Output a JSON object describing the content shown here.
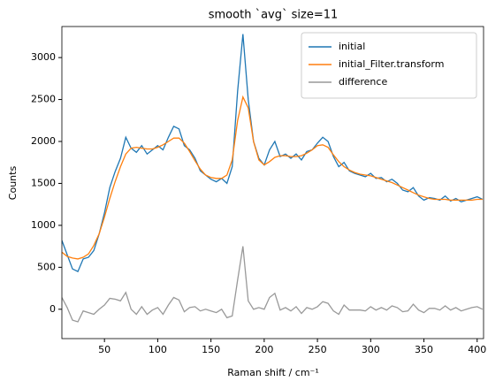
{
  "chart_data": {
    "type": "line",
    "title": "smooth `avg` size=11",
    "xlabel": "Raman shift / cm⁻¹",
    "ylabel": "Counts",
    "x": [
      10,
      15,
      20,
      25,
      30,
      35,
      40,
      45,
      50,
      55,
      60,
      65,
      70,
      75,
      80,
      85,
      90,
      95,
      100,
      105,
      110,
      115,
      120,
      125,
      130,
      135,
      140,
      145,
      150,
      155,
      160,
      165,
      170,
      175,
      180,
      185,
      190,
      195,
      200,
      205,
      210,
      215,
      220,
      225,
      230,
      235,
      240,
      245,
      250,
      255,
      260,
      265,
      270,
      275,
      280,
      285,
      290,
      295,
      300,
      305,
      310,
      315,
      320,
      325,
      330,
      335,
      340,
      345,
      350,
      355,
      360,
      365,
      370,
      375,
      380,
      385,
      390,
      395,
      400,
      405
    ],
    "series": [
      {
        "name": "initial",
        "color": "#1f77b4",
        "values": [
          820,
          650,
          480,
          450,
          600,
          620,
          700,
          900,
          1150,
          1450,
          1640,
          1800,
          2050,
          1920,
          1870,
          1950,
          1850,
          1900,
          1950,
          1900,
          2050,
          2180,
          2150,
          1950,
          1900,
          1800,
          1650,
          1600,
          1550,
          1520,
          1560,
          1500,
          1700,
          2600,
          3280,
          2500,
          2000,
          1800,
          1720,
          1900,
          2000,
          1820,
          1850,
          1800,
          1850,
          1780,
          1880,
          1900,
          1980,
          2050,
          2000,
          1820,
          1700,
          1750,
          1650,
          1620,
          1600,
          1580,
          1620,
          1560,
          1570,
          1520,
          1550,
          1500,
          1420,
          1400,
          1450,
          1350,
          1300,
          1330,
          1320,
          1300,
          1350,
          1290,
          1320,
          1280,
          1300,
          1320,
          1340,
          1310
        ]
      },
      {
        "name": "initial_Filter.transform",
        "color": "#ff7f0e",
        "values": [
          680,
          630,
          610,
          600,
          620,
          660,
          760,
          900,
          1100,
          1320,
          1520,
          1700,
          1850,
          1920,
          1930,
          1920,
          1910,
          1910,
          1930,
          1960,
          2000,
          2040,
          2040,
          1980,
          1880,
          1770,
          1670,
          1600,
          1570,
          1560,
          1560,
          1600,
          1780,
          2250,
          2530,
          2400,
          2000,
          1780,
          1720,
          1760,
          1810,
          1830,
          1830,
          1820,
          1820,
          1830,
          1860,
          1900,
          1950,
          1960,
          1930,
          1840,
          1760,
          1700,
          1660,
          1630,
          1610,
          1600,
          1590,
          1570,
          1550,
          1530,
          1510,
          1480,
          1450,
          1420,
          1390,
          1360,
          1340,
          1320,
          1310,
          1310,
          1310,
          1300,
          1300,
          1300,
          1300,
          1300,
          1310,
          1310
        ]
      },
      {
        "name": "difference",
        "color": "#999999",
        "values": [
          140,
          20,
          -130,
          -150,
          -20,
          -40,
          -60,
          0,
          50,
          130,
          120,
          100,
          200,
          0,
          -60,
          30,
          -60,
          -10,
          20,
          -60,
          50,
          140,
          110,
          -30,
          20,
          30,
          -20,
          0,
          -20,
          -40,
          0,
          -100,
          -80,
          350,
          750,
          100,
          0,
          20,
          0,
          140,
          190,
          -10,
          20,
          -20,
          30,
          -50,
          20,
          0,
          30,
          90,
          70,
          -20,
          -60,
          50,
          -10,
          -10,
          -10,
          -20,
          30,
          -10,
          20,
          -10,
          40,
          20,
          -30,
          -20,
          60,
          -10,
          -40,
          10,
          10,
          -10,
          40,
          -10,
          20,
          -20,
          0,
          20,
          30,
          0
        ]
      }
    ],
    "xlim": [
      10,
      406
    ],
    "ylim": [
      -350,
      3370
    ],
    "xticks": [
      50,
      100,
      150,
      200,
      250,
      300,
      350,
      400
    ],
    "yticks": [
      0,
      500,
      1000,
      1500,
      2000,
      2500,
      3000
    ],
    "legend": "upper right"
  }
}
